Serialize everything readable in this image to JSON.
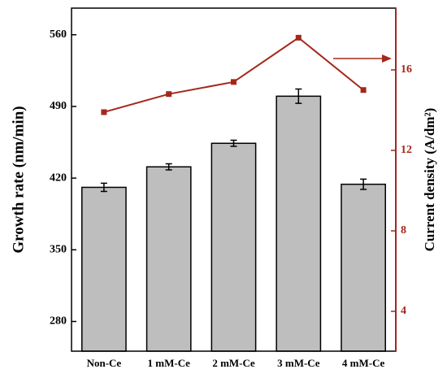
{
  "chart_data": {
    "type": "bar",
    "categories": [
      "Non-Ce",
      "1 mM-Ce",
      "2 mM-Ce",
      "3 mM-Ce",
      "4 mM-Ce"
    ],
    "y_label": "Growth rate (nm/min)",
    "y2_label": "Current density (A/dm²)",
    "series": [
      {
        "type": "bar",
        "color": "#bebebe",
        "values": [
          411,
          431,
          454,
          500,
          414
        ],
        "errors": [
          4,
          3,
          3,
          7,
          5
        ]
      },
      {
        "type": "line",
        "axis": "y2",
        "color": "#a3281c",
        "values": [
          13.9,
          14.8,
          15.4,
          17.6,
          15.0
        ]
      }
    ],
    "ylim": [
      251,
      586
    ],
    "yticks": [
      280,
      350,
      420,
      490,
      560
    ],
    "y2lim": [
      2.02,
      19.07
    ],
    "y2ticks": [
      4,
      8,
      12,
      16
    ],
    "grid": false
  }
}
